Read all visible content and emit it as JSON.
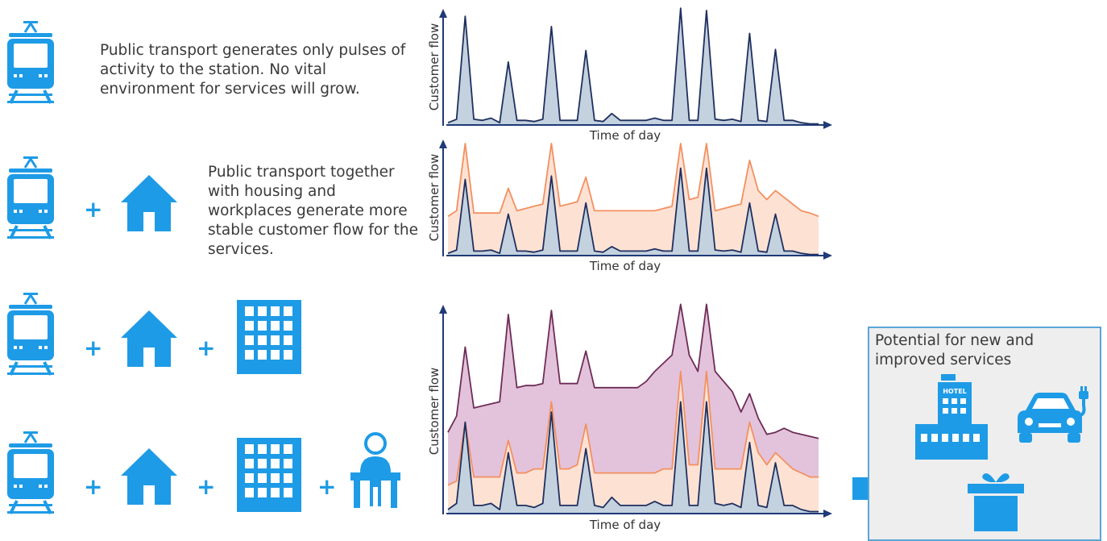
{
  "descriptions": {
    "row1": "Public transport generates only pulses of activity to the station. No vital environment for services will grow.",
    "row2": "Public transport together with housing and workplaces generate more stable customer flow for the services."
  },
  "plus_sign": "+",
  "icons": {
    "train": "train-icon",
    "house": "house-icon",
    "office": "office-building-icon",
    "worker": "person-at-desk-icon",
    "arrow": "arrow-right-icon",
    "hotel": "hotel-icon",
    "car": "electric-car-icon",
    "gift": "gift-icon"
  },
  "hotel_sign": "HOTEL",
  "potential": {
    "title": "Potential for new and improved services"
  },
  "colors": {
    "icon_blue": "#1e9be6",
    "navy_line": "#1f2f5f",
    "navy_fill": "#c3d2de",
    "orange_line": "#f39060",
    "orange_fill": "#fde2d4",
    "purple_line": "#6e2c57",
    "purple_fill": "#e3c3db"
  },
  "chart_data": [
    {
      "type": "area",
      "xlabel": "Time of day",
      "ylabel": "Customer flow",
      "series": [
        {
          "values": [
            2,
            5,
            95,
            5,
            4,
            6,
            2,
            55,
            4,
            4,
            3,
            5,
            86,
            4,
            4,
            4,
            65,
            4,
            3,
            10,
            4,
            4,
            4,
            4,
            6,
            4,
            4,
            102,
            4,
            4,
            100,
            5,
            4,
            5,
            3,
            80,
            4,
            3,
            66,
            4,
            4,
            2,
            1,
            1
          ]
        }
      ]
    },
    {
      "type": "area",
      "xlabel": "Time of day",
      "ylabel": "Customer flow",
      "series": [
        {
          "values": [
            2,
            5,
            68,
            4,
            4,
            5,
            2,
            37,
            4,
            4,
            3,
            5,
            71,
            4,
            4,
            4,
            47,
            4,
            3,
            8,
            4,
            4,
            4,
            4,
            6,
            4,
            4,
            78,
            4,
            4,
            78,
            5,
            4,
            5,
            3,
            47,
            4,
            3,
            37,
            4,
            4,
            2,
            1,
            1
          ]
        },
        {
          "values": [
            35,
            40,
            100,
            38,
            38,
            38,
            38,
            60,
            40,
            42,
            44,
            46,
            100,
            44,
            46,
            48,
            70,
            40,
            40,
            40,
            40,
            40,
            40,
            40,
            40,
            42,
            44,
            100,
            50,
            52,
            100,
            40,
            42,
            44,
            46,
            85,
            58,
            50,
            58,
            52,
            46,
            40,
            38,
            35
          ]
        }
      ]
    },
    {
      "type": "area",
      "xlabel": "Time of day",
      "ylabel": "Customer flow",
      "series": [
        {
          "values": [
            2,
            5,
            45,
            4,
            4,
            5,
            2,
            30,
            4,
            4,
            3,
            5,
            50,
            4,
            4,
            4,
            32,
            4,
            3,
            8,
            4,
            4,
            4,
            4,
            6,
            4,
            4,
            55,
            4,
            4,
            55,
            5,
            4,
            5,
            3,
            35,
            4,
            3,
            25,
            4,
            4,
            2,
            1,
            1
          ]
        },
        {
          "values": [
            14,
            16,
            45,
            18,
            18,
            18,
            18,
            36,
            20,
            20,
            22,
            22,
            55,
            22,
            22,
            24,
            44,
            20,
            20,
            20,
            20,
            20,
            20,
            20,
            20,
            22,
            22,
            70,
            24,
            24,
            70,
            22,
            22,
            22,
            22,
            45,
            30,
            24,
            30,
            26,
            22,
            20,
            18,
            18
          ]
        },
        {
          "values": [
            40,
            48,
            82,
            52,
            53,
            54,
            55,
            98,
            62,
            63,
            63,
            64,
            100,
            64,
            64,
            64,
            80,
            62,
            62,
            62,
            62,
            62,
            62,
            65,
            70,
            74,
            78,
            103,
            78,
            70,
            103,
            70,
            65,
            60,
            50,
            59,
            47,
            39,
            40,
            42,
            40,
            39,
            38,
            37
          ]
        }
      ]
    }
  ]
}
